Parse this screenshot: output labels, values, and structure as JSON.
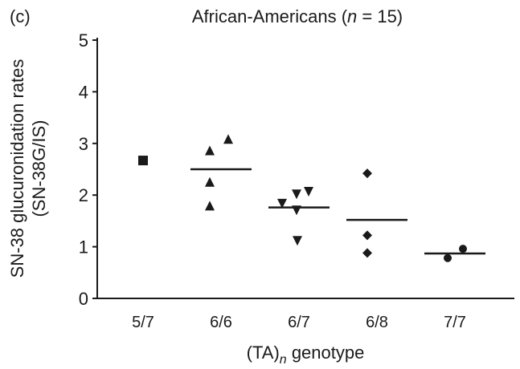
{
  "chart_data": {
    "type": "scatter",
    "panel_label": "(c)",
    "title": "African-Americans (n = 15)",
    "title_parts": {
      "pre": "African-Americans (",
      "n": "n",
      "post": " = 15)"
    },
    "ylabel_line1": "SN-38 glucuronidation rates",
    "ylabel_line2": "(SN-38G/IS)",
    "xlabel": "(TA)n genotype",
    "xlabel_parts": {
      "pre": "(TA)",
      "sub": "n",
      "post": " genotype"
    },
    "categories": [
      "5/7",
      "6/6",
      "6/7",
      "6/8",
      "7/7"
    ],
    "ylim": [
      0,
      5
    ],
    "yticks": [
      "0",
      "1",
      "2",
      "3",
      "4",
      "5"
    ],
    "groups": [
      {
        "category": "5/7",
        "marker": "square",
        "points": [
          2.67
        ],
        "mean": null
      },
      {
        "category": "6/6",
        "marker": "triangle-up",
        "points": [
          2.85,
          3.07,
          2.24,
          1.78
        ],
        "mean": 2.5
      },
      {
        "category": "6/7",
        "marker": "triangle-down",
        "points": [
          1.85,
          2.03,
          2.08,
          1.72,
          1.13
        ],
        "mean": 1.76
      },
      {
        "category": "6/8",
        "marker": "diamond",
        "points": [
          2.42,
          1.22,
          0.88
        ],
        "mean": 1.52
      },
      {
        "category": "7/7",
        "marker": "circle",
        "points": [
          0.78,
          0.96
        ],
        "mean": 0.87
      }
    ],
    "grid": false
  }
}
